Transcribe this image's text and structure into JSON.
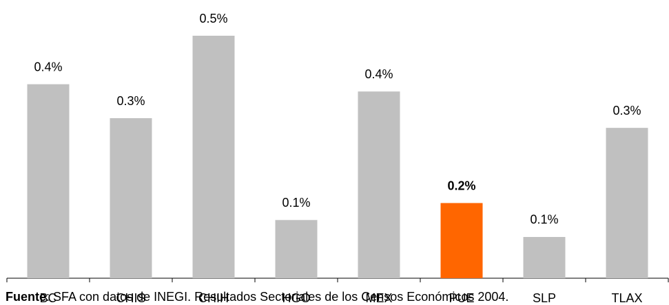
{
  "chart_data": {
    "type": "bar",
    "categories": [
      "BC",
      "CHIS",
      "CHIH",
      "HGO",
      "MEX",
      "PUE",
      "SLP",
      "TLAX"
    ],
    "values": [
      0.4,
      0.33,
      0.5,
      0.12,
      0.385,
      0.155,
      0.085,
      0.31
    ],
    "value_labels": [
      "0.4%",
      "0.3%",
      "0.5%",
      "0.1%",
      "0.4%",
      "0.2%",
      "0.1%",
      "0.3%"
    ],
    "colors": [
      "#c0c0c0",
      "#c0c0c0",
      "#c0c0c0",
      "#c0c0c0",
      "#c0c0c0",
      "#ff6600",
      "#c0c0c0",
      "#c0c0c0"
    ],
    "highlight_color": "#ff6600",
    "source_label": "Fuente",
    "source": ": SFA con datos de INEGI. Resultados Sectoriales de los Censos Económicos 2004."
  }
}
